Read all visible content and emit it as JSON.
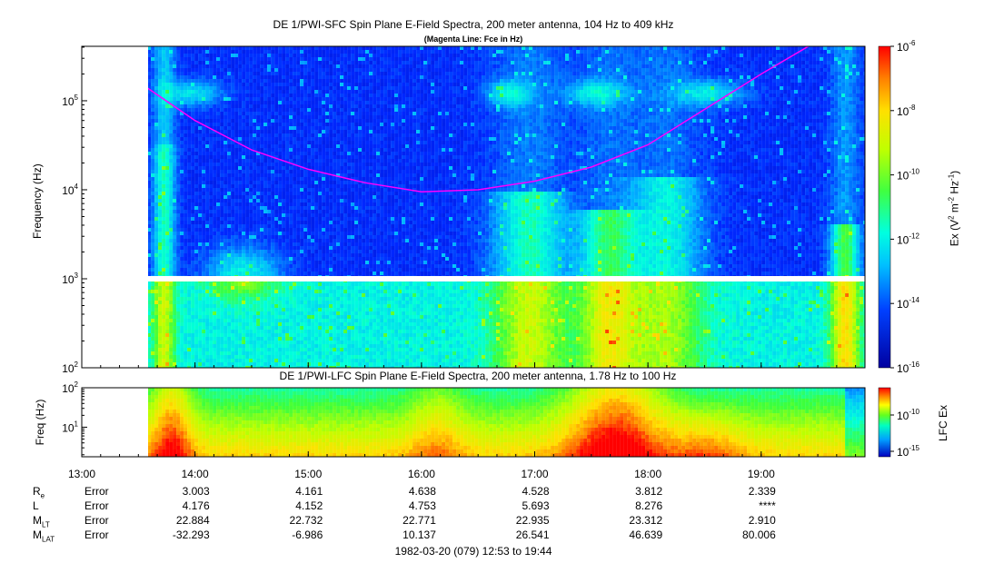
{
  "colors": {
    "background": "#ffffff",
    "spectrogram_low": "#0a1ea8",
    "spectrogram_high": "#e8120a",
    "fce_line": "#ff00ff",
    "gap": "#ffffff"
  },
  "chart_data": [
    {
      "type": "heatmap",
      "title": "DE 1/PWI-SFC  Spin Plane E-Field Spectra, 200 meter antenna, 104 Hz to 409 kHz",
      "subtitle": "(Magenta Line: Fce in Hz)",
      "ylabel": "Frequency (Hz)",
      "yscale": "log",
      "ylim": [
        100,
        409000
      ],
      "yticks": [
        "10^2",
        "10^3",
        "10^4",
        "10^5"
      ],
      "xlim": [
        "13:00",
        "19:55"
      ],
      "data_start": "13:27",
      "gap_hz": 1000,
      "colorbar": {
        "label": "Ex (V^2 m^-2 Hz^-1)",
        "scale": "log",
        "range": [
          1e-16,
          1e-06
        ],
        "ticks": [
          "10^-6",
          "10^-8",
          "10^-10",
          "10^-12",
          "10^-14",
          "10^-16"
        ]
      },
      "fce_line": {
        "name": "Fce",
        "x": [
          "13:27",
          "14:00",
          "14:30",
          "15:00",
          "15:30",
          "16:00",
          "16:30",
          "17:00",
          "17:30",
          "18:00",
          "18:30",
          "19:00",
          "19:25"
        ],
        "y": [
          180000,
          60000,
          28000,
          17000,
          12000,
          9500,
          10000,
          12500,
          18000,
          32000,
          80000,
          200000,
          409000
        ]
      }
    },
    {
      "type": "heatmap",
      "title": "DE 1/PWI-LFC  Spin Plane E-Field Spectra, 200 meter antenna, 1.78 Hz to 100 Hz",
      "ylabel": "Freq (Hz)",
      "yscale": "log",
      "ylim": [
        1.78,
        100
      ],
      "yticks": [
        "10^1",
        "10^2"
      ],
      "colorbar": {
        "label": "LFC Ex",
        "scale": "log",
        "ticks": [
          "10^-10",
          "10^-15"
        ]
      }
    }
  ],
  "x_axis": {
    "tick_labels": [
      "13:00",
      "14:00",
      "15:00",
      "16:00",
      "17:00",
      "18:00",
      "19:00"
    ]
  },
  "ephemeris": {
    "rows": [
      {
        "label": "R",
        "sub": "e",
        "values": [
          "Error",
          "3.003",
          "4.161",
          "4.638",
          "4.528",
          "3.812",
          "2.339"
        ]
      },
      {
        "label": "L",
        "sub": "",
        "values": [
          "Error",
          "4.176",
          "4.152",
          "4.753",
          "5.693",
          "8.276",
          "****"
        ]
      },
      {
        "label": "M",
        "sub": "LT",
        "values": [
          "Error",
          "22.884",
          "22.732",
          "22.771",
          "22.935",
          "23.312",
          "2.910"
        ]
      },
      {
        "label": "M",
        "sub": "LAT",
        "values": [
          "Error",
          "-32.293",
          "-6.986",
          "10.137",
          "26.541",
          "46.639",
          "80.006"
        ]
      }
    ]
  },
  "footer": {
    "date_range": "1982-03-20 (079) 12:53 to 19:44"
  }
}
